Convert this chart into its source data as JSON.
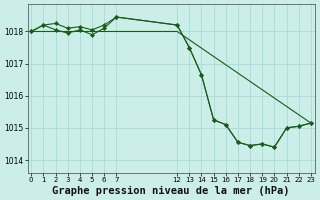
{
  "background_color": "#cceee8",
  "grid_color": "#aadddd",
  "line_color": "#1a5c1a",
  "marker_color": "#1a5c1a",
  "title": "Graphe pression niveau de la mer (hPa)",
  "title_fontsize": 7.5,
  "ylim": [
    1013.6,
    1018.85
  ],
  "yticks": [
    1014,
    1015,
    1016,
    1017,
    1018
  ],
  "xlim": [
    -0.3,
    23.3
  ],
  "series1_x": [
    0,
    1,
    2,
    3,
    4,
    5,
    6,
    7,
    12,
    13,
    14,
    15,
    16,
    17,
    18,
    19,
    20,
    21,
    22,
    23
  ],
  "series1_y": [
    1018.0,
    1018.2,
    1018.25,
    1018.1,
    1018.15,
    1018.05,
    1018.2,
    1018.45,
    1018.2,
    1017.5,
    1016.65,
    1015.25,
    1015.1,
    1014.55,
    1014.45,
    1014.5,
    1014.4,
    1015.0,
    1015.05,
    1015.15
  ],
  "series2_x": [
    0,
    7,
    12,
    23
  ],
  "series2_y": [
    1018.0,
    1018.0,
    1018.0,
    1015.15
  ],
  "series3_x": [
    0,
    1,
    2,
    3,
    4,
    5,
    6,
    7,
    12,
    13,
    14,
    15,
    16,
    17,
    18,
    19,
    20,
    21,
    22,
    23
  ],
  "series3_y": [
    1018.0,
    1018.2,
    1018.05,
    1017.95,
    1018.05,
    1017.9,
    1018.1,
    1018.45,
    1018.2,
    1017.5,
    1016.65,
    1015.25,
    1015.1,
    1014.55,
    1014.45,
    1014.5,
    1014.4,
    1015.0,
    1015.05,
    1015.15
  ],
  "xticks_left": [
    0,
    1,
    2,
    3,
    4,
    5,
    6,
    7
  ],
  "xticks_right": [
    12,
    13,
    14,
    15,
    16,
    17,
    18,
    19,
    20,
    21,
    22,
    23
  ]
}
